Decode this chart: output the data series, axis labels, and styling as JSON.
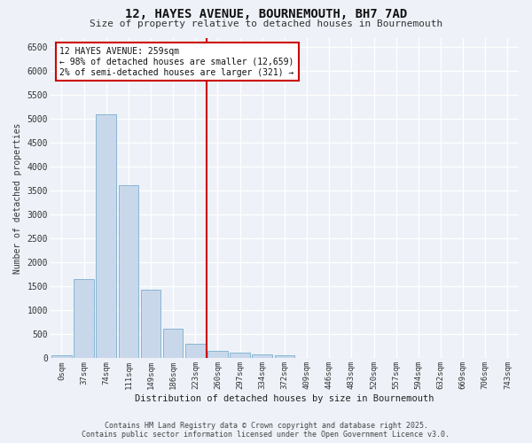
{
  "title": "12, HAYES AVENUE, BOURNEMOUTH, BH7 7AD",
  "subtitle": "Size of property relative to detached houses in Bournemouth",
  "xlabel": "Distribution of detached houses by size in Bournemouth",
  "ylabel": "Number of detached properties",
  "bar_color": "#c8d8ea",
  "bar_edge_color": "#7aaed0",
  "background_color": "#eef2f8",
  "grid_color": "#ffffff",
  "vline_color": "#cc0000",
  "vline_x_index": 7,
  "annotation_box_color": "#cc0000",
  "annotation_text": "12 HAYES AVENUE: 259sqm\n← 98% of detached houses are smaller (12,659)\n2% of semi-detached houses are larger (321) →",
  "footer_line1": "Contains HM Land Registry data © Crown copyright and database right 2025.",
  "footer_line2": "Contains public sector information licensed under the Open Government Licence v3.0.",
  "categories": [
    "0sqm",
    "37sqm",
    "74sqm",
    "111sqm",
    "149sqm",
    "186sqm",
    "223sqm",
    "260sqm",
    "297sqm",
    "334sqm",
    "372sqm",
    "409sqm",
    "446sqm",
    "483sqm",
    "520sqm",
    "557sqm",
    "594sqm",
    "632sqm",
    "669sqm",
    "706sqm",
    "743sqm"
  ],
  "values": [
    70,
    1650,
    5100,
    3620,
    1430,
    620,
    310,
    155,
    110,
    80,
    55,
    0,
    0,
    0,
    0,
    0,
    0,
    0,
    0,
    0,
    0
  ],
  "ylim": [
    0,
    6700
  ],
  "yticks": [
    0,
    500,
    1000,
    1500,
    2000,
    2500,
    3000,
    3500,
    4000,
    4500,
    5000,
    5500,
    6000,
    6500
  ]
}
